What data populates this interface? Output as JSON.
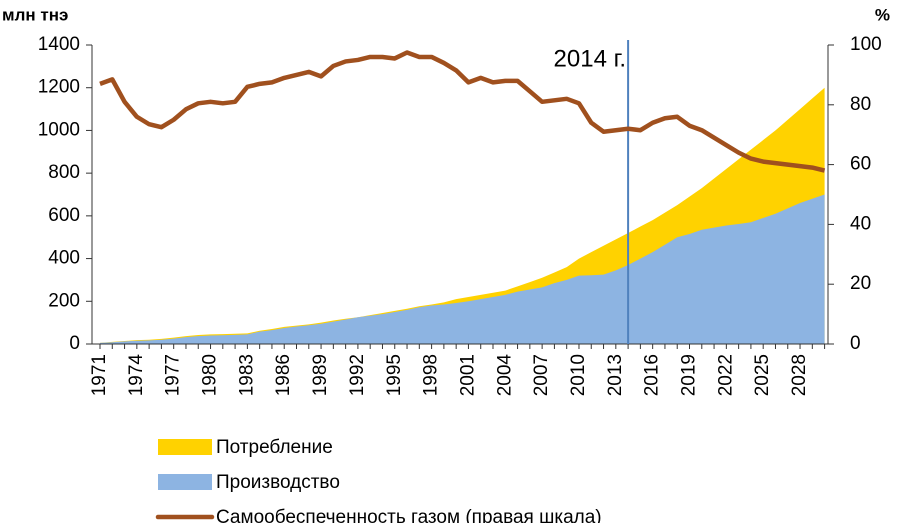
{
  "chart_data": {
    "type": "area_line",
    "y_label": "млн тнэ",
    "y2_label": "%",
    "annotation": "2014 г.",
    "categories": [
      "1971",
      null,
      null,
      "1974",
      null,
      null,
      "1977",
      null,
      null,
      "1980",
      null,
      null,
      "1983",
      null,
      null,
      "1986",
      null,
      null,
      "1989",
      null,
      null,
      "1992",
      null,
      null,
      "1995",
      null,
      null,
      "1998",
      null,
      null,
      "2001",
      null,
      null,
      "2004",
      null,
      null,
      "2007",
      null,
      null,
      "2010",
      null,
      null,
      "2013",
      null,
      null,
      "2016",
      null,
      null,
      "2019",
      null,
      null,
      "2022",
      null,
      null,
      "2025",
      null,
      null,
      "2028",
      null,
      null
    ],
    "series": [
      {
        "name": "Потребление",
        "color": "#ffd200",
        "kind": "area",
        "values": [
          5,
          10,
          14,
          18,
          20,
          24,
          30,
          37,
          42,
          45,
          46,
          48,
          50,
          62,
          70,
          80,
          86,
          92,
          100,
          110,
          118,
          125,
          135,
          145,
          155,
          165,
          177,
          185,
          195,
          210,
          220,
          230,
          240,
          250,
          270,
          290,
          310,
          335,
          360,
          400,
          430,
          460,
          490,
          520,
          550,
          580,
          615,
          650,
          690,
          730,
          775,
          820,
          865,
          910,
          955,
          1000,
          1050,
          1100,
          1150,
          1200
        ]
      },
      {
        "name": "Производство",
        "color": "#8db4e2",
        "kind": "area",
        "values": [
          5,
          8,
          12,
          15,
          17,
          20,
          25,
          32,
          37,
          40,
          41,
          43,
          45,
          58,
          65,
          75,
          82,
          88,
          95,
          105,
          115,
          125,
          132,
          140,
          150,
          160,
          172,
          180,
          185,
          192,
          200,
          210,
          220,
          230,
          245,
          255,
          265,
          285,
          300,
          320,
          322,
          325,
          345,
          370,
          400,
          430,
          465,
          500,
          515,
          535,
          545,
          555,
          562,
          570,
          590,
          610,
          635,
          660,
          680,
          700
        ]
      },
      {
        "name": "Самообеспеченность газом (правая шкала)",
        "color": "#a0501e",
        "kind": "line",
        "axis": "y2",
        "values": [
          87,
          88.5,
          81,
          76,
          73.5,
          72.5,
          75,
          78.5,
          80.5,
          81,
          80.5,
          81,
          86,
          87,
          87.5,
          89,
          90,
          91,
          89.5,
          93,
          94.5,
          95,
          96,
          96,
          95.5,
          97.5,
          96,
          96,
          94,
          91.5,
          87.5,
          89,
          87.5,
          88,
          88,
          84.5,
          81,
          81.5,
          82,
          80.5,
          74,
          71,
          71.5,
          72,
          71.5,
          74,
          75.5,
          76,
          73,
          71.5,
          69,
          66.5,
          64,
          62,
          61,
          60.5,
          60,
          59.5,
          59,
          58
        ]
      }
    ],
    "ylim": [
      0,
      1400
    ],
    "yticks": [
      0,
      200,
      400,
      600,
      800,
      1000,
      1200,
      1400
    ],
    "y2lim": [
      0,
      100
    ],
    "y2ticks": [
      0,
      20,
      40,
      60,
      80,
      100
    ],
    "legend": "bottom"
  }
}
